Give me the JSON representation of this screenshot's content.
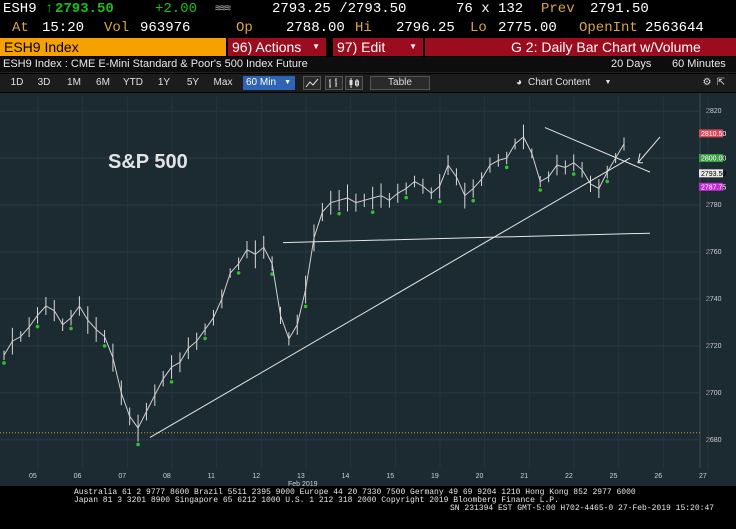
{
  "quote": {
    "ticker": "ESH9",
    "last": "2793.50",
    "change": "+2.00",
    "bid_ask": "2793.25 /2793.50",
    "size": "76 x 132",
    "prev_label": "Prev",
    "prev": "2791.50",
    "at_label": "At",
    "time": "15:20",
    "vol_label": "Vol",
    "vol": "963976",
    "op_label": "Op",
    "op": "2788.00",
    "hi_label": "Hi",
    "hi": "2796.25",
    "lo_label": "Lo",
    "lo": "2775.00",
    "openint_label": "OpenInt",
    "openint": "2563644"
  },
  "cmdbar": {
    "security": "ESH9 Index",
    "actions": "96) Actions",
    "edit": "97) Edit",
    "title": "G 2: Daily Bar Chart w/Volume"
  },
  "desc": {
    "text": "ESH9 Index : CME E-Mini Standard & Poor's 500 Index Future",
    "days": "20 Days",
    "interval": "60 Minutes"
  },
  "toolbar": {
    "periods": [
      "1D",
      "3D",
      "1M",
      "6M",
      "YTD",
      "1Y",
      "5Y",
      "Max"
    ],
    "interval": "60 Min",
    "table": "Table",
    "chart_content": "Chart Content"
  },
  "chart_text": "S&P 500",
  "chart_data": {
    "type": "line",
    "ylim": [
      2668,
      2826
    ],
    "y_ticks": [
      2680,
      2700,
      2720,
      2740,
      2760,
      2780,
      2800,
      2820
    ],
    "x_ticks": [
      "05",
      "06",
      "07",
      "08",
      "11",
      "12",
      "13",
      "14",
      "15",
      "19",
      "20",
      "21",
      "22",
      "25",
      "26",
      "27"
    ],
    "x_axis_label": "Feb 2019",
    "series": [
      {
        "values": [
          2716,
          2722,
          2724,
          2728,
          2733,
          2737,
          2735,
          2729,
          2732,
          2737,
          2731,
          2727,
          2724,
          2715,
          2700,
          2690,
          2685,
          2692,
          2699,
          2706,
          2711,
          2713,
          2719,
          2722,
          2727,
          2732,
          2740,
          2751,
          2755,
          2761,
          2759,
          2762,
          2755,
          2733,
          2723,
          2729,
          2744,
          2766,
          2777,
          2781,
          2782,
          2783,
          2781,
          2782,
          2783,
          2784,
          2782,
          2785,
          2787,
          2790,
          2788,
          2785,
          2788,
          2797,
          2792,
          2784,
          2787,
          2791,
          2797,
          2799,
          2800,
          2806,
          2809,
          2802,
          2790,
          2792,
          2797,
          2796,
          2798,
          2795,
          2789,
          2787,
          2794,
          2800,
          2806
        ]
      }
    ],
    "price_tags": [
      {
        "value": "2810.50",
        "color": "#d84a5a"
      },
      {
        "value": "2800.00",
        "color": "#3aa043"
      },
      {
        "value": "2793.50",
        "color": "#e8e8e8"
      },
      {
        "value": "2787.75",
        "color": "#c42ad1"
      }
    ],
    "grid": true
  },
  "footer": {
    "line1": "Australia 61 2 9777 8600  Brazil 5511 2395 9000  Europe 44 20 7330 7500  Germany 49 69 9204 1210  Hong Kong 852 2977 6000",
    "line2": "Japan 81 3 3201 8900       Singapore 65 6212 1000       U.S. 1 212 318 2000      Copyright 2019 Bloomberg Finance L.P.",
    "line3": "SN 231394 EST  GMT-5:00 H702-4465-0 27-Feb-2019 15:20:47"
  },
  "colors": {
    "orange": "#f6a100",
    "red_bar": "#9a0c1e",
    "chart_bg": "#1c2a32",
    "interval_blue": "#2f63b4"
  }
}
